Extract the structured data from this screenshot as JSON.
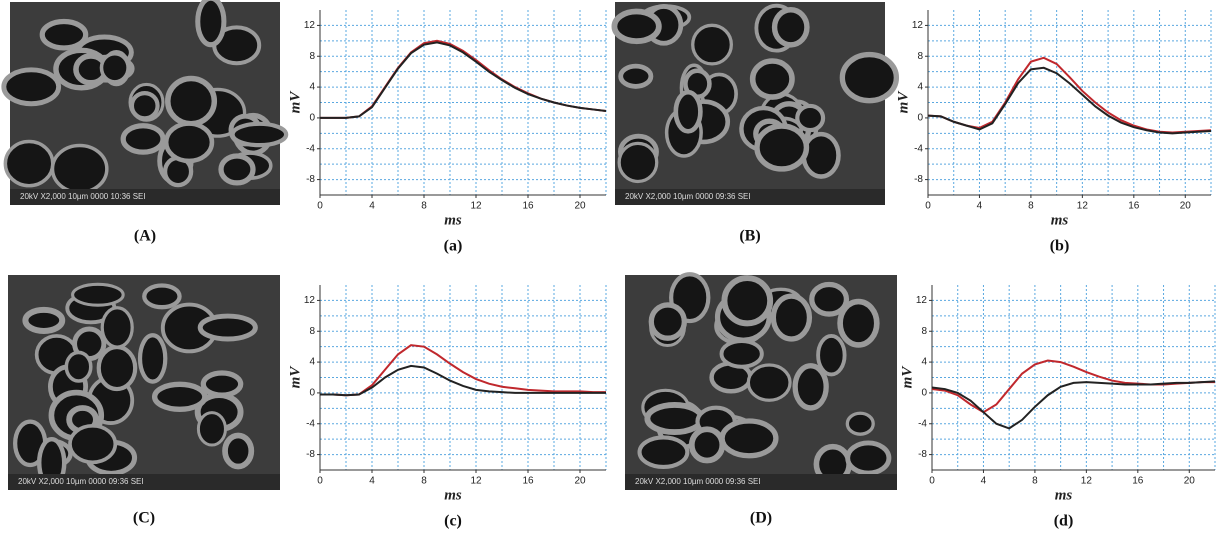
{
  "images": [
    {
      "label": "(A)",
      "caption": "20kV X2,000 10µm 0000 10:36 SEI"
    },
    {
      "label": "(B)",
      "caption": "20kV X2,000 10µm 0000 09:36 SEI"
    },
    {
      "label": "(C)",
      "caption": "20kV X2,000 10µm 0000 09:36 SEI"
    },
    {
      "label": "(D)",
      "caption": "20kV X2,000 10µm 0000 09:36 SEI"
    }
  ],
  "chart_data": [
    {
      "type": "line",
      "title": "(a)",
      "x_label": "ms",
      "y_label": "mV",
      "x": [
        0,
        1,
        2,
        3,
        4,
        5,
        6,
        7,
        8,
        9,
        10,
        11,
        12,
        13,
        14,
        15,
        16,
        17,
        18,
        19,
        20,
        21,
        22
      ],
      "xlim": [
        0,
        22
      ],
      "ylim": [
        -10,
        14
      ],
      "xticks": [
        0,
        4,
        8,
        12,
        16,
        20
      ],
      "yticks": [
        -8,
        -4,
        0,
        4,
        8,
        12
      ],
      "x_minor_grid": [
        2,
        6,
        10,
        14,
        18,
        22
      ],
      "y_minor_grid": [
        -10,
        -6,
        -2,
        2,
        6,
        10
      ],
      "grid": true,
      "series": [
        {
          "color": "#c0282d",
          "values": [
            0,
            0,
            0,
            0.2,
            1.5,
            4,
            6.5,
            8.5,
            9.7,
            10,
            9.6,
            8.7,
            7.5,
            6.2,
            5,
            4,
            3.2,
            2.5,
            2,
            1.6,
            1.3,
            1.1,
            0.9
          ]
        },
        {
          "color": "#222222",
          "values": [
            0,
            0,
            0,
            0.2,
            1.4,
            3.9,
            6.4,
            8.4,
            9.5,
            9.8,
            9.4,
            8.5,
            7.3,
            6,
            4.9,
            3.9,
            3.1,
            2.5,
            2,
            1.6,
            1.3,
            1.1,
            0.9
          ]
        }
      ]
    },
    {
      "type": "line",
      "title": "(b)",
      "x_label": "ms",
      "y_label": "mV",
      "x": [
        0,
        1,
        2,
        3,
        4,
        5,
        6,
        7,
        8,
        9,
        10,
        11,
        12,
        13,
        14,
        15,
        16,
        17,
        18,
        19,
        20,
        21,
        22
      ],
      "xlim": [
        0,
        22
      ],
      "ylim": [
        -10,
        14
      ],
      "xticks": [
        0,
        4,
        8,
        12,
        16,
        20
      ],
      "yticks": [
        -8,
        -4,
        0,
        4,
        8,
        12
      ],
      "x_minor_grid": [
        2,
        6,
        10,
        14,
        18,
        22
      ],
      "y_minor_grid": [
        -10,
        -6,
        -2,
        2,
        6,
        10
      ],
      "grid": true,
      "series": [
        {
          "color": "#c0282d",
          "values": [
            0.3,
            0.2,
            -0.5,
            -1,
            -1.3,
            -0.5,
            2,
            5,
            7.3,
            7.8,
            7,
            5.3,
            3.5,
            2,
            0.7,
            -0.3,
            -1,
            -1.5,
            -1.8,
            -1.9,
            -1.8,
            -1.7,
            -1.6
          ]
        },
        {
          "color": "#222222",
          "values": [
            0.3,
            0.2,
            -0.5,
            -1,
            -1.5,
            -0.7,
            1.8,
            4.5,
            6.3,
            6.5,
            5.8,
            4.5,
            3,
            1.5,
            0.3,
            -0.6,
            -1.2,
            -1.6,
            -1.9,
            -2,
            -1.9,
            -1.8,
            -1.7
          ]
        }
      ]
    },
    {
      "type": "line",
      "title": "(c)",
      "x_label": "ms",
      "y_label": "mV",
      "x": [
        0,
        1,
        2,
        3,
        4,
        5,
        6,
        7,
        8,
        9,
        10,
        11,
        12,
        13,
        14,
        15,
        16,
        17,
        18,
        19,
        20,
        21,
        22
      ],
      "xlim": [
        0,
        22
      ],
      "ylim": [
        -10,
        14
      ],
      "xticks": [
        0,
        4,
        8,
        12,
        16,
        20
      ],
      "yticks": [
        -8,
        -4,
        0,
        4,
        8,
        12
      ],
      "x_minor_grid": [
        2,
        6,
        10,
        14,
        18,
        22
      ],
      "y_minor_grid": [
        -10,
        -6,
        -2,
        2,
        6,
        10
      ],
      "grid": true,
      "series": [
        {
          "color": "#c0282d",
          "values": [
            -0.2,
            -0.2,
            -0.3,
            -0.2,
            1,
            3,
            5,
            6.2,
            6,
            5,
            3.8,
            2.7,
            1.8,
            1.2,
            0.8,
            0.6,
            0.4,
            0.3,
            0.2,
            0.2,
            0.2,
            0.1,
            0.1
          ]
        },
        {
          "color": "#222222",
          "values": [
            -0.2,
            -0.2,
            -0.3,
            -0.2,
            0.7,
            2,
            3,
            3.5,
            3.3,
            2.5,
            1.6,
            0.9,
            0.4,
            0.2,
            0.1,
            0,
            0,
            0,
            0,
            0,
            0,
            0,
            0
          ]
        }
      ]
    },
    {
      "type": "line",
      "title": "(d)",
      "x_label": "ms",
      "y_label": "mV",
      "x": [
        0,
        1,
        2,
        3,
        4,
        5,
        6,
        7,
        8,
        9,
        10,
        11,
        12,
        13,
        14,
        15,
        16,
        17,
        18,
        19,
        20,
        21,
        22
      ],
      "xlim": [
        0,
        22
      ],
      "ylim": [
        -10,
        14
      ],
      "xticks": [
        0,
        4,
        8,
        12,
        16,
        20
      ],
      "yticks": [
        -8,
        -4,
        0,
        4,
        8,
        12
      ],
      "x_minor_grid": [
        2,
        6,
        10,
        14,
        18,
        22
      ],
      "y_minor_grid": [
        -10,
        -6,
        -2,
        2,
        6,
        10
      ],
      "grid": true,
      "series": [
        {
          "color": "#c0282d",
          "values": [
            0.5,
            0.3,
            -0.3,
            -1.5,
            -2.5,
            -1.5,
            0.5,
            2.5,
            3.7,
            4.2,
            4,
            3.4,
            2.7,
            2.1,
            1.6,
            1.3,
            1.2,
            1.1,
            1.1,
            1.2,
            1.3,
            1.4,
            1.4
          ]
        },
        {
          "color": "#222222",
          "values": [
            0.7,
            0.5,
            0,
            -1,
            -2.5,
            -4,
            -4.6,
            -3.5,
            -1.8,
            -0.3,
            0.8,
            1.3,
            1.4,
            1.3,
            1.2,
            1.1,
            1.1,
            1.1,
            1.2,
            1.3,
            1.3,
            1.4,
            1.5
          ]
        }
      ]
    }
  ]
}
